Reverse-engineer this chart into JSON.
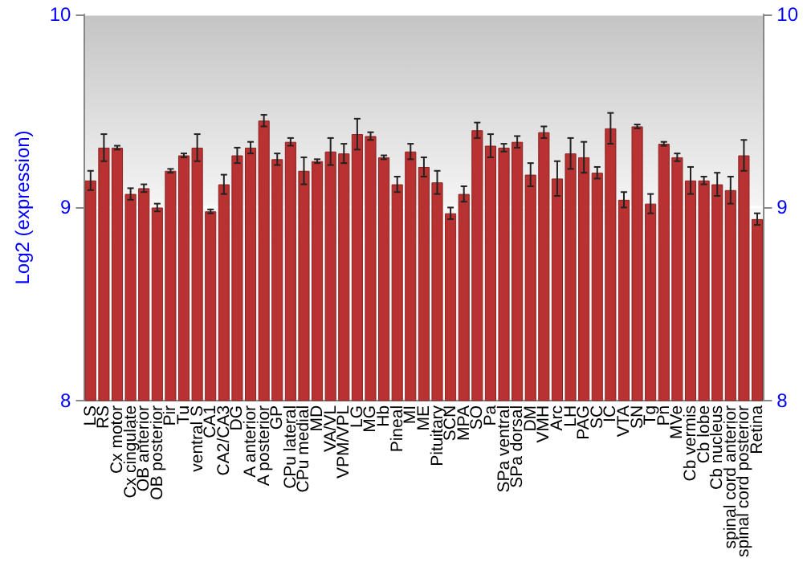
{
  "chart_data": {
    "type": "bar",
    "ylabel": "Log2 (expression)",
    "categories": [
      "LS",
      "RS",
      "Cx motor",
      "Cx cingulate",
      "OB anterior",
      "OB posterior",
      "Pir",
      "Tu",
      "ventral S",
      "CA1",
      "CA2/CA3",
      "DG",
      "A anterior",
      "A posterior",
      "GP",
      "CPu lateral",
      "CPu medial",
      "MD",
      "VA/VL",
      "VPM/VPL",
      "LG",
      "MG",
      "Hb",
      "Pineal",
      "MI",
      "ME",
      "Pituitary",
      "SCN",
      "MPA",
      "SO",
      "Pa",
      "SPa ventral",
      "SPa dorsal",
      "DM",
      "VMH",
      "Arc",
      "LH",
      "PAG",
      "SC",
      "IC",
      "VTA",
      "SN",
      "Tg",
      "Pn",
      "MVe",
      "Cb vermis",
      "Cb lobe",
      "Cb nucleus",
      "spinal cord anterior",
      "spinal cord posterior",
      "Retina"
    ],
    "values": [
      9.14,
      9.31,
      9.31,
      9.07,
      9.1,
      9.0,
      9.19,
      9.27,
      9.31,
      8.98,
      9.12,
      9.27,
      9.31,
      9.45,
      9.25,
      9.34,
      9.19,
      9.24,
      9.29,
      9.28,
      9.38,
      9.37,
      9.26,
      9.12,
      9.29,
      9.21,
      9.13,
      8.97,
      9.07,
      9.4,
      9.32,
      9.31,
      9.34,
      9.17,
      9.39,
      9.15,
      9.28,
      9.26,
      9.18,
      9.41,
      9.04,
      9.42,
      9.02,
      9.33,
      9.26,
      9.14,
      9.14,
      9.12,
      9.09,
      9.27,
      8.94
    ],
    "errors": [
      0.05,
      0.07,
      0.01,
      0.03,
      0.02,
      0.02,
      0.01,
      0.01,
      0.07,
      0.01,
      0.05,
      0.04,
      0.03,
      0.03,
      0.03,
      0.02,
      0.07,
      0.01,
      0.07,
      0.05,
      0.08,
      0.02,
      0.01,
      0.04,
      0.04,
      0.05,
      0.06,
      0.03,
      0.04,
      0.04,
      0.06,
      0.02,
      0.03,
      0.06,
      0.03,
      0.09,
      0.08,
      0.08,
      0.03,
      0.08,
      0.04,
      0.01,
      0.05,
      0.01,
      0.02,
      0.07,
      0.02,
      0.06,
      0.07,
      0.08,
      0.03
    ],
    "color": "#b83232",
    "ylim": [
      8,
      10
    ],
    "yticks": [
      8,
      9,
      10
    ],
    "y2lim": [
      8,
      10
    ],
    "y2ticks": [
      8,
      9,
      10
    ],
    "grid": "y"
  }
}
